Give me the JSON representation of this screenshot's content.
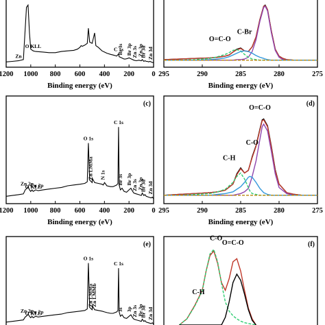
{
  "chart_data": [
    {
      "panel": "a",
      "type": "line",
      "panel_label": "",
      "xlabel": "Binding energy (eV)",
      "ylabel": "",
      "xlim": [
        1200,
        0
      ],
      "xticks": [
        "1200",
        "1000",
        "800",
        "600",
        "400",
        "200",
        "0"
      ],
      "x": [
        1200,
        1150,
        1100,
        1060,
        1045,
        1035,
        1022,
        1010,
        1000,
        980,
        960,
        900,
        850,
        800,
        750,
        700,
        650,
        620,
        600,
        590,
        580,
        560,
        540,
        531,
        520,
        500,
        480,
        470,
        450,
        420,
        400,
        380,
        350,
        330,
        300,
        285,
        280,
        260,
        250,
        240,
        230,
        210,
        200,
        190,
        180,
        160,
        140,
        120,
        100,
        92,
        80,
        70,
        60,
        50,
        40,
        30,
        20,
        10,
        0
      ],
      "y": [
        2,
        3,
        4,
        6,
        60,
        96,
        100,
        52,
        24,
        21,
        20,
        19,
        18,
        18,
        20,
        21,
        22,
        24,
        27,
        30,
        29,
        31,
        34,
        60,
        36,
        34,
        52,
        30,
        27,
        21,
        19,
        17,
        15,
        14,
        12,
        16,
        11,
        9,
        8,
        7,
        7,
        8,
        9,
        8,
        7,
        5,
        4,
        5,
        4,
        6,
        3,
        4,
        3,
        3,
        2,
        3,
        2,
        1,
        1
      ],
      "annotations": [
        {
          "text": "Zn",
          "x": 1100
        },
        {
          "text": "O KLL",
          "x": 980
        },
        {
          "text": "C 1s",
          "x": 285
        },
        {
          "text": "Br 3s",
          "x": 257
        },
        {
          "text": "Br 3p",
          "x": 185
        },
        {
          "text": "Zn 3s",
          "x": 140
        },
        {
          "text": "Zn 3p",
          "x": 92
        },
        {
          "text": "Br 3d",
          "x": 70
        },
        {
          "text": "Zn 3d",
          "x": 10
        }
      ]
    },
    {
      "panel": "b",
      "type": "line",
      "panel_label": "",
      "xlabel": "Binding energy (eV)",
      "ylabel": "",
      "xlim": [
        295,
        275
      ],
      "xticks": [
        "295",
        "290",
        "285",
        "280",
        "275"
      ],
      "x": [
        295,
        293,
        291,
        289,
        288,
        287,
        286.5,
        286,
        285.5,
        285,
        284.5,
        284,
        283.5,
        283,
        282.5,
        282,
        281.8,
        281.5,
        281,
        280.5,
        280,
        279.5,
        279,
        278,
        277,
        276,
        275
      ],
      "series": [
        {
          "name": "",
          "color": "#000000",
          "values": [
            6,
            7,
            8,
            9,
            10,
            12,
            14,
            19,
            24,
            26,
            21,
            20,
            28,
            45,
            75,
            98,
            100,
            92,
            55,
            24,
            12,
            8,
            6,
            5,
            5,
            5,
            5
          ]
        },
        {
          "name": "",
          "color": "#c0392b",
          "values": [
            6,
            7,
            8,
            9,
            10,
            12,
            14,
            19,
            23,
            25,
            21,
            20,
            28,
            45,
            75,
            98,
            99,
            92,
            55,
            24,
            12,
            8,
            6,
            5,
            5,
            5,
            5
          ]
        },
        {
          "name": "",
          "color": "#8e44ad",
          "values": [
            5,
            5,
            5,
            5,
            5,
            5,
            5,
            5,
            6,
            6,
            7,
            10,
            20,
            40,
            72,
            96,
            98,
            90,
            52,
            22,
            10,
            6,
            5,
            5,
            5,
            5,
            5
          ]
        },
        {
          "name": "",
          "color": "#2ecc71",
          "values": [
            5,
            5,
            6,
            8,
            11,
            15,
            18,
            22,
            23,
            21,
            15,
            10,
            7,
            6,
            5,
            5,
            5,
            5,
            5,
            5,
            5,
            5,
            5,
            5,
            5,
            5,
            5
          ]
        },
        {
          "name": "",
          "color": "#3498db",
          "values": [
            5,
            5,
            5,
            6,
            7,
            9,
            11,
            14,
            17,
            20,
            21,
            20,
            17,
            13,
            10,
            8,
            7,
            6,
            5,
            5,
            5,
            5,
            5,
            5,
            5,
            5,
            5
          ]
        },
        {
          "name": "",
          "color": "#b8860b",
          "values": [
            5,
            5,
            5,
            5,
            5,
            5,
            5,
            5,
            5,
            5,
            5,
            5,
            5,
            5,
            5,
            5,
            5,
            5,
            5,
            5,
            5,
            5,
            5,
            5,
            5,
            5,
            5
          ]
        }
      ],
      "annotations": [
        {
          "text": "O=C-O",
          "x": 287.7,
          "y": 38
        },
        {
          "text": "C-Br",
          "x": 284.5,
          "y": 50
        }
      ]
    },
    {
      "panel": "c",
      "type": "line",
      "panel_label": "(c)",
      "xlabel": "Binding energy (eV)",
      "ylabel": "",
      "xlim": [
        1200,
        0
      ],
      "xticks": [
        "1200",
        "1000",
        "800",
        "600",
        "400",
        "200",
        "0"
      ],
      "x": [
        1200,
        1150,
        1100,
        1060,
        1045,
        1030,
        1022,
        1010,
        1000,
        990,
        980,
        960,
        940,
        900,
        850,
        800,
        750,
        700,
        650,
        600,
        560,
        540,
        531,
        520,
        500,
        498,
        480,
        450,
        420,
        410,
        399,
        380,
        350,
        330,
        300,
        290,
        285,
        280,
        270,
        257,
        240,
        220,
        200,
        185,
        170,
        160,
        140,
        120,
        100,
        92,
        80,
        70,
        60,
        40,
        20,
        10,
        0
      ],
      "y": [
        4,
        5,
        6,
        7,
        12,
        14,
        16,
        12,
        10,
        12,
        10,
        12,
        11,
        12,
        13,
        14,
        15,
        17,
        18,
        19,
        20,
        22,
        70,
        24,
        21,
        26,
        21,
        20,
        19,
        18,
        21,
        17,
        16,
        16,
        18,
        20,
        90,
        18,
        12,
        14,
        10,
        9,
        12,
        14,
        10,
        8,
        7,
        6,
        5,
        8,
        5,
        6,
        4,
        3,
        2,
        3,
        1
      ],
      "annotations": [
        {
          "text": "O 1s",
          "x": 531
        },
        {
          "text": "O KLL",
          "x": 980
        },
        {
          "text": "Zn 2p",
          "x": 1030
        },
        {
          "text": "Cu 2p",
          "x": 950
        },
        {
          "text": "Zn LMMa",
          "x": 500
        },
        {
          "text": "N 1s",
          "x": 400
        },
        {
          "text": "C 1s",
          "x": 285
        },
        {
          "text": "Br 3s",
          "x": 257
        },
        {
          "text": "Br 3p",
          "x": 185
        },
        {
          "text": "Zn 3s",
          "x": 140
        },
        {
          "text": "Zn 3p",
          "x": 92
        },
        {
          "text": "Br 3d",
          "x": 70
        },
        {
          "text": "Zn 3d",
          "x": 10
        }
      ]
    },
    {
      "panel": "d",
      "type": "line",
      "panel_label": "(d)",
      "xlabel": "Binding energy (eV)",
      "ylabel": "",
      "xlim": [
        295,
        275
      ],
      "xticks": [
        "295",
        "290",
        "285",
        "280",
        "275"
      ],
      "x": [
        295,
        293,
        291,
        289,
        288,
        287,
        286,
        285.5,
        285,
        284.5,
        284,
        283.8,
        283.5,
        283,
        282.5,
        282.2,
        282,
        281.5,
        281,
        280.5,
        280,
        279,
        278,
        277,
        276,
        275
      ],
      "series": [
        {
          "name": "",
          "color": "#000000",
          "values": [
            5,
            6,
            7,
            8,
            9,
            11,
            18,
            30,
            37,
            31,
            34,
            40,
            50,
            63,
            82,
            93,
            94,
            86,
            62,
            35,
            18,
            8,
            6,
            5,
            5,
            5
          ]
        },
        {
          "name": "",
          "color": "#c0392b",
          "values": [
            5,
            6,
            7,
            8,
            9,
            11,
            18,
            29,
            36,
            31,
            34,
            40,
            49,
            62,
            81,
            92,
            93,
            85,
            61,
            34,
            18,
            8,
            6,
            5,
            5,
            5
          ]
        },
        {
          "name": "",
          "color": "#8e44ad",
          "values": [
            5,
            5,
            5,
            5,
            5,
            5,
            5,
            6,
            7,
            9,
            13,
            18,
            27,
            45,
            70,
            85,
            88,
            80,
            56,
            30,
            14,
            7,
            5,
            5,
            5,
            5
          ]
        },
        {
          "name": "",
          "color": "#2ecc71",
          "values": [
            5,
            5,
            6,
            7,
            9,
            12,
            20,
            27,
            31,
            24,
            14,
            10,
            7,
            6,
            5,
            5,
            5,
            5,
            5,
            5,
            5,
            5,
            5,
            5,
            5,
            5
          ]
        },
        {
          "name": "",
          "color": "#3498db",
          "values": [
            5,
            5,
            5,
            5,
            6,
            7,
            9,
            12,
            15,
            20,
            26,
            27,
            26,
            20,
            13,
            10,
            8,
            6,
            5,
            5,
            5,
            5,
            5,
            5,
            5,
            5
          ]
        },
        {
          "name": "",
          "color": "#b8860b",
          "values": [
            5,
            5,
            5,
            5,
            5,
            5,
            5,
            5,
            5,
            5,
            5,
            5,
            5,
            5,
            5,
            5,
            5,
            5,
            5,
            5,
            5,
            5,
            5,
            5,
            5,
            5
          ]
        }
      ],
      "annotations": [
        {
          "text": "O=C-O",
          "x": 282.5,
          "y": 105
        },
        {
          "text": "C-O",
          "x": 283.5,
          "y": 64
        },
        {
          "text": "C-H",
          "x": 286.5,
          "y": 46
        }
      ]
    },
    {
      "panel": "e",
      "type": "line",
      "panel_label": "(e)",
      "xlabel": "",
      "ylabel": "",
      "xlim": [
        1200,
        0
      ],
      "xticks": [],
      "x": [
        1200,
        1150,
        1100,
        1060,
        1045,
        1030,
        1022,
        1010,
        1000,
        990,
        980,
        960,
        940,
        900,
        850,
        800,
        750,
        700,
        650,
        600,
        560,
        540,
        531,
        520,
        500,
        498,
        480,
        450,
        420,
        400,
        380,
        350,
        330,
        300,
        290,
        285,
        280,
        270,
        257,
        240,
        220,
        200,
        185,
        170,
        160,
        140,
        120,
        100,
        92,
        80,
        70,
        60,
        40,
        20,
        10,
        0
      ],
      "y": [
        4,
        5,
        6,
        7,
        11,
        13,
        15,
        12,
        10,
        12,
        10,
        12,
        11,
        12,
        13,
        14,
        15,
        17,
        18,
        19,
        20,
        22,
        85,
        24,
        21,
        26,
        21,
        20,
        19,
        18,
        17,
        16,
        16,
        18,
        20,
        78,
        18,
        12,
        14,
        10,
        9,
        12,
        14,
        10,
        8,
        7,
        6,
        5,
        8,
        5,
        6,
        4,
        3,
        2,
        3,
        1
      ],
      "annotations": [
        {
          "text": "O 1s",
          "x": 531
        },
        {
          "text": "C 1s",
          "x": 285
        },
        {
          "text": "O KLL",
          "x": 980
        },
        {
          "text": "Zn 2p",
          "x": 1030
        },
        {
          "text": "Cu 2p",
          "x": 950
        },
        {
          "text": "Zn LMMa",
          "x": 500
        },
        {
          "text": "Zn LMMb",
          "x": 470
        },
        {
          "text": "3s",
          "x": 257
        },
        {
          "text": "3p",
          "x": 185
        },
        {
          "text": "Zn 3s",
          "x": 140
        },
        {
          "text": "Br 3p",
          "x": 92
        },
        {
          "text": "Br 3d",
          "x": 70
        },
        {
          "text": "Zn 3d",
          "x": 10
        }
      ]
    },
    {
      "panel": "f",
      "type": "line",
      "panel_label": "(f)",
      "xlabel": "",
      "ylabel": "",
      "xlim": [
        295,
        275
      ],
      "xticks": [],
      "x": [
        293,
        292,
        291,
        290,
        289.5,
        289,
        288.5,
        288,
        287.5,
        287,
        286.5,
        286,
        285.5,
        285,
        284.5,
        284,
        283.5,
        283
      ],
      "series": [
        {
          "name": "",
          "color": "#c0392b",
          "values": [
            0,
            8,
            25,
            45,
            70,
            90,
            96,
            80,
            55,
            45,
            60,
            82,
            86,
            70,
            45,
            22,
            8,
            0
          ]
        },
        {
          "name": "",
          "color": "#2ecc71",
          "values": [
            0,
            8,
            24,
            44,
            70,
            92,
            98,
            82,
            54,
            30,
            18,
            12,
            8,
            5,
            3,
            2,
            1,
            0
          ]
        },
        {
          "name": "",
          "color": "#000000",
          "values": [
            0,
            0,
            0,
            0,
            0,
            0,
            0,
            0,
            0,
            10,
            30,
            55,
            66,
            58,
            40,
            20,
            6,
            0
          ]
        }
      ],
      "annotations": [
        {
          "text": "C-O",
          "x": 288.2,
          "y": 110
        },
        {
          "text": "O=C-O",
          "x": 286,
          "y": 104
        },
        {
          "text": "C-H",
          "x": 290.5,
          "y": 40
        }
      ]
    }
  ]
}
